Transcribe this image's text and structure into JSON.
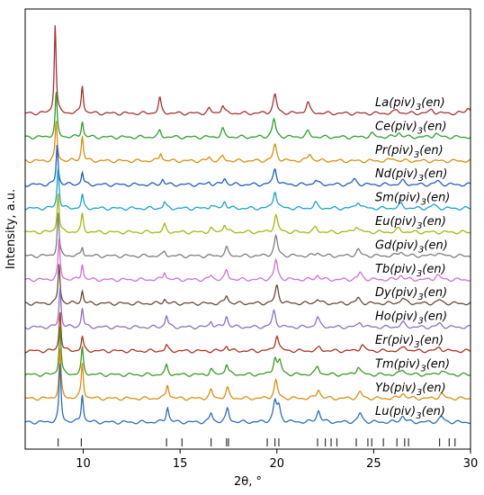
{
  "chart_data": {
    "type": "line",
    "xlabel": "2θ, °",
    "ylabel": "Intensity, a.u.",
    "xlim": [
      7,
      30
    ],
    "x_ticks": [
      10,
      15,
      20,
      25,
      30
    ],
    "grid": false,
    "legend": "inline-right",
    "series": [
      {
        "name": "La(piv)3(en)",
        "label_base": "La(piv)",
        "label_sub": "3",
        "label_tail": "(en)",
        "color": "#a83232",
        "peaks": [
          [
            8.55,
            100
          ],
          [
            9.95,
            32
          ],
          [
            13.95,
            17
          ],
          [
            16.5,
            5
          ],
          [
            17.2,
            9
          ],
          [
            19.9,
            21
          ],
          [
            21.6,
            12
          ],
          [
            26.2,
            4
          ],
          [
            28.0,
            4
          ],
          [
            29.9,
            6
          ]
        ]
      },
      {
        "name": "Ce(piv)3(en)",
        "label_base": "Ce(piv)",
        "label_sub": "3",
        "label_tail": "(en)",
        "color": "#2ca02c",
        "peaks": [
          [
            8.6,
            50
          ],
          [
            9.95,
            18
          ],
          [
            13.95,
            7
          ],
          [
            17.2,
            9
          ],
          [
            19.85,
            20
          ],
          [
            21.6,
            6
          ],
          [
            24.9,
            4
          ],
          [
            26.3,
            5
          ],
          [
            28.2,
            4
          ]
        ]
      },
      {
        "name": "Pr(piv)3(en)",
        "label_base": "Pr(piv)",
        "label_sub": "3",
        "label_tail": "(en)",
        "color": "#d4920a",
        "peaks": [
          [
            8.6,
            45
          ],
          [
            9.95,
            28
          ],
          [
            14.0,
            9
          ],
          [
            16.5,
            4
          ],
          [
            17.2,
            5
          ],
          [
            19.9,
            18
          ],
          [
            21.7,
            8
          ],
          [
            26.0,
            3
          ]
        ]
      },
      {
        "name": "Nd(piv)3(en)",
        "label_base": "Nd(piv)",
        "label_sub": "3",
        "label_tail": "(en)",
        "color": "#1f5fbf",
        "peaks": [
          [
            8.65,
            45
          ],
          [
            9.95,
            14
          ],
          [
            14.1,
            6
          ],
          [
            16.5,
            3
          ],
          [
            17.3,
            7
          ],
          [
            19.9,
            18
          ],
          [
            22.0,
            5
          ],
          [
            24.0,
            6
          ],
          [
            26.5,
            4
          ],
          [
            28.3,
            4
          ]
        ]
      },
      {
        "name": "Sm(piv)3(en)",
        "label_base": "Sm(piv)",
        "label_sub": "3",
        "label_tail": "(en)",
        "color": "#17a5c9",
        "peaks": [
          [
            8.7,
            48
          ],
          [
            9.95,
            15
          ],
          [
            14.2,
            7
          ],
          [
            16.6,
            4
          ],
          [
            17.3,
            8
          ],
          [
            19.9,
            20
          ],
          [
            22.0,
            6
          ],
          [
            24.2,
            8
          ],
          [
            26.4,
            5
          ],
          [
            28.1,
            4
          ]
        ]
      },
      {
        "name": "Eu(piv)3(en)",
        "label_base": "Eu(piv)",
        "label_sub": "3",
        "label_tail": "(en)",
        "color": "#a5b80f",
        "peaks": [
          [
            8.7,
            45
          ],
          [
            9.95,
            20
          ],
          [
            14.2,
            8
          ],
          [
            16.6,
            4
          ],
          [
            17.3,
            9
          ],
          [
            19.95,
            19
          ],
          [
            22.0,
            5
          ],
          [
            24.1,
            7
          ],
          [
            26.3,
            4
          ]
        ]
      },
      {
        "name": "Gd(piv)3(en)",
        "label_base": "Gd(piv)",
        "label_sub": "3",
        "label_tail": "(en)",
        "color": "#7f7f7f",
        "peaks": [
          [
            8.7,
            48
          ],
          [
            9.95,
            10
          ],
          [
            14.2,
            5
          ],
          [
            17.4,
            9
          ],
          [
            19.95,
            22
          ],
          [
            22.1,
            4
          ],
          [
            24.2,
            7
          ],
          [
            26.4,
            5
          ],
          [
            28.3,
            4
          ]
        ]
      },
      {
        "name": "Tb(piv)3(en)",
        "label_base": "Tb(piv)",
        "label_sub": "3",
        "label_tail": "(en)",
        "color": "#d36fd3",
        "peaks": [
          [
            8.75,
            45
          ],
          [
            9.95,
            18
          ],
          [
            14.2,
            9
          ],
          [
            16.6,
            5
          ],
          [
            17.4,
            10
          ],
          [
            19.95,
            22
          ],
          [
            22.1,
            5
          ],
          [
            24.3,
            8
          ],
          [
            26.4,
            5
          ],
          [
            28.3,
            5
          ]
        ]
      },
      {
        "name": "Dy(piv)3(en)",
        "label_base": "Dy(piv)",
        "label_sub": "3",
        "label_tail": "(en)",
        "color": "#6b4a3a",
        "peaks": [
          [
            8.75,
            45
          ],
          [
            9.95,
            14
          ],
          [
            14.2,
            5
          ],
          [
            17.4,
            9
          ],
          [
            20.0,
            20
          ],
          [
            22.1,
            5
          ],
          [
            24.2,
            6
          ],
          [
            26.5,
            6
          ],
          [
            28.4,
            4
          ]
        ]
      },
      {
        "name": "Ho(piv)3(en)",
        "label_base": "Ho(piv)",
        "label_sub": "3",
        "label_tail": "(en)",
        "color": "#8f6fc4",
        "peaks": [
          [
            8.8,
            45
          ],
          [
            9.95,
            22
          ],
          [
            14.3,
            13
          ],
          [
            16.6,
            7
          ],
          [
            17.4,
            12
          ],
          [
            19.85,
            18
          ],
          [
            22.1,
            11
          ],
          [
            24.3,
            6
          ],
          [
            26.5,
            5
          ],
          [
            28.4,
            4
          ]
        ]
      },
      {
        "name": "Er(piv)3(en)",
        "label_base": "Er(piv)",
        "label_sub": "3",
        "label_tail": "(en)",
        "color": "#b0331c",
        "peaks": [
          [
            8.8,
            45
          ],
          [
            9.95,
            16
          ],
          [
            14.3,
            6
          ],
          [
            17.4,
            6
          ],
          [
            20.0,
            18
          ],
          [
            22.2,
            4
          ],
          [
            24.4,
            7
          ],
          [
            26.6,
            5
          ],
          [
            28.4,
            4
          ]
        ]
      },
      {
        "name": "Tm(piv)3(en)",
        "label_base": "Tm(piv)",
        "label_sub": "3",
        "label_tail": "(en)",
        "color": "#3c9a24",
        "peaks": [
          [
            8.8,
            55
          ],
          [
            9.95,
            30
          ],
          [
            14.3,
            10
          ],
          [
            16.6,
            6
          ],
          [
            17.4,
            12
          ],
          [
            19.9,
            18
          ],
          [
            20.15,
            14
          ],
          [
            22.1,
            9
          ],
          [
            24.2,
            9
          ],
          [
            26.5,
            6
          ],
          [
            28.5,
            5
          ]
        ]
      },
      {
        "name": "Yb(piv)3(en)",
        "label_base": "Yb(piv)",
        "label_sub": "3",
        "label_tail": "(en)",
        "color": "#e08e0b",
        "peaks": [
          [
            8.8,
            55
          ],
          [
            9.95,
            40
          ],
          [
            14.35,
            16
          ],
          [
            16.6,
            9
          ],
          [
            17.45,
            11
          ],
          [
            19.95,
            20
          ],
          [
            22.15,
            10
          ],
          [
            24.3,
            7
          ],
          [
            26.5,
            6
          ],
          [
            28.5,
            5
          ]
        ]
      },
      {
        "name": "Lu(piv)3(en)",
        "label_base": "Lu(piv)",
        "label_sub": "3",
        "label_tail": "(en)",
        "color": "#2a6ebb",
        "peaks": [
          [
            8.8,
            65
          ],
          [
            9.95,
            32
          ],
          [
            14.35,
            17
          ],
          [
            16.6,
            10
          ],
          [
            17.45,
            15
          ],
          [
            19.9,
            22
          ],
          [
            20.1,
            16
          ],
          [
            22.15,
            13
          ],
          [
            24.3,
            10
          ],
          [
            26.5,
            7
          ],
          [
            28.5,
            6
          ]
        ]
      }
    ],
    "reference_ticks": [
      8.7,
      9.9,
      14.3,
      15.1,
      16.6,
      17.4,
      17.5,
      19.5,
      19.9,
      20.1,
      22.1,
      22.5,
      22.8,
      23.1,
      24.1,
      24.7,
      24.9,
      25.5,
      26.2,
      26.6,
      26.8,
      28.4,
      28.9,
      29.2
    ]
  }
}
